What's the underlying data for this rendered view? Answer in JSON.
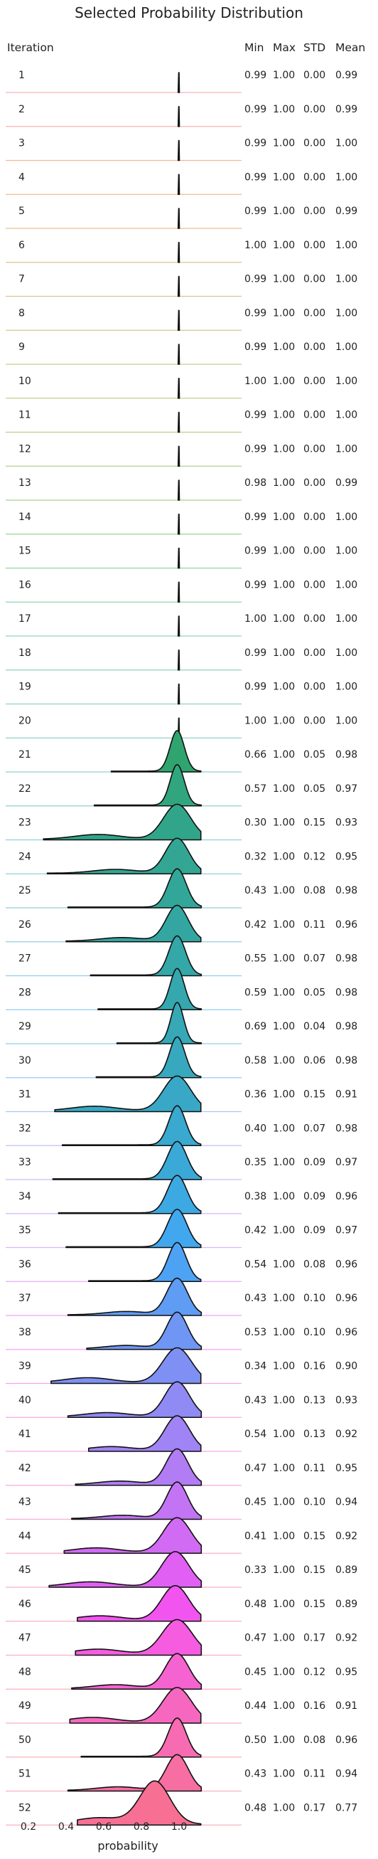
{
  "chart_data": {
    "type": "ridgeline",
    "title": "Selected Probability Distribution",
    "xlabel": "probability",
    "ylabel": "Iteration",
    "xlim": [
      0.2,
      1.2
    ],
    "xticks": [
      "0.2",
      "0.4",
      "0.6",
      "0.8",
      "1.0"
    ],
    "stat_headers": [
      "Min",
      "Max",
      "STD",
      "Mean"
    ],
    "rows": [
      {
        "iteration": "1",
        "min": "0.99",
        "max": "1.00",
        "std": "0.00",
        "mean": "0.99",
        "color": "#f77189"
      },
      {
        "iteration": "2",
        "min": "0.99",
        "max": "1.00",
        "std": "0.00",
        "mean": "0.99",
        "color": "#f7746a"
      },
      {
        "iteration": "3",
        "min": "0.99",
        "max": "1.00",
        "std": "0.00",
        "mean": "1.00",
        "color": "#f47a46"
      },
      {
        "iteration": "4",
        "min": "0.99",
        "max": "1.00",
        "std": "0.00",
        "mean": "1.00",
        "color": "#e28332"
      },
      {
        "iteration": "5",
        "min": "0.99",
        "max": "1.00",
        "std": "0.00",
        "mean": "0.99",
        "color": "#d48b32"
      },
      {
        "iteration": "6",
        "min": "1.00",
        "max": "1.00",
        "std": "0.00",
        "mean": "1.00",
        "color": "#c69232"
      },
      {
        "iteration": "7",
        "min": "0.99",
        "max": "1.00",
        "std": "0.00",
        "mean": "1.00",
        "color": "#b99732"
      },
      {
        "iteration": "8",
        "min": "0.99",
        "max": "1.00",
        "std": "0.00",
        "mean": "1.00",
        "color": "#ad9c32"
      },
      {
        "iteration": "9",
        "min": "0.99",
        "max": "1.00",
        "std": "0.00",
        "mean": "1.00",
        "color": "#a1a031"
      },
      {
        "iteration": "10",
        "min": "1.00",
        "max": "1.00",
        "std": "0.00",
        "mean": "1.00",
        "color": "#94a431"
      },
      {
        "iteration": "11",
        "min": "0.99",
        "max": "1.00",
        "std": "0.00",
        "mean": "1.00",
        "color": "#86a831"
      },
      {
        "iteration": "12",
        "min": "0.99",
        "max": "1.00",
        "std": "0.00",
        "mean": "1.00",
        "color": "#74ac31"
      },
      {
        "iteration": "13",
        "min": "0.98",
        "max": "1.00",
        "std": "0.00",
        "mean": "0.99",
        "color": "#5eb031"
      },
      {
        "iteration": "14",
        "min": "0.99",
        "max": "1.00",
        "std": "0.00",
        "mean": "1.00",
        "color": "#3db432"
      },
      {
        "iteration": "15",
        "min": "0.99",
        "max": "1.00",
        "std": "0.00",
        "mean": "1.00",
        "color": "#32b456"
      },
      {
        "iteration": "16",
        "min": "0.99",
        "max": "1.00",
        "std": "0.00",
        "mean": "1.00",
        "color": "#33b26c"
      },
      {
        "iteration": "17",
        "min": "1.00",
        "max": "1.00",
        "std": "0.00",
        "mean": "1.00",
        "color": "#34b07c"
      },
      {
        "iteration": "18",
        "min": "0.99",
        "max": "1.00",
        "std": "0.00",
        "mean": "1.00",
        "color": "#35ae88"
      },
      {
        "iteration": "19",
        "min": "0.99",
        "max": "1.00",
        "std": "0.00",
        "mean": "1.00",
        "color": "#35ad92"
      },
      {
        "iteration": "20",
        "min": "1.00",
        "max": "1.00",
        "std": "0.00",
        "mean": "1.00",
        "color": "#36ac9a"
      },
      {
        "iteration": "21",
        "min": "0.66",
        "max": "1.00",
        "std": "0.05",
        "mean": "0.98",
        "color": "#36aba2",
        "fill": "#2fa46e"
      },
      {
        "iteration": "22",
        "min": "0.57",
        "max": "1.00",
        "std": "0.05",
        "mean": "0.97",
        "color": "#37aaa9",
        "fill": "#31a57d"
      },
      {
        "iteration": "23",
        "min": "0.30",
        "max": "1.00",
        "std": "0.15",
        "mean": "0.93",
        "color": "#37a9b0",
        "fill": "#31a589"
      },
      {
        "iteration": "24",
        "min": "0.32",
        "max": "1.00",
        "std": "0.12",
        "mean": "0.95",
        "color": "#38a7b7",
        "fill": "#32a692"
      },
      {
        "iteration": "25",
        "min": "0.43",
        "max": "1.00",
        "std": "0.08",
        "mean": "0.98",
        "color": "#38a6be",
        "fill": "#33a69a"
      },
      {
        "iteration": "26",
        "min": "0.42",
        "max": "1.00",
        "std": "0.11",
        "mean": "0.96",
        "color": "#39a4c6",
        "fill": "#33a6a1"
      },
      {
        "iteration": "27",
        "min": "0.55",
        "max": "1.00",
        "std": "0.07",
        "mean": "0.98",
        "color": "#3aa3cf",
        "fill": "#34a7a8"
      },
      {
        "iteration": "28",
        "min": "0.59",
        "max": "1.00",
        "std": "0.05",
        "mean": "0.98",
        "color": "#3ba1d9",
        "fill": "#35a7af"
      },
      {
        "iteration": "29",
        "min": "0.69",
        "max": "1.00",
        "std": "0.04",
        "mean": "0.98",
        "color": "#3d9fe5",
        "fill": "#36a8b6"
      },
      {
        "iteration": "30",
        "min": "0.58",
        "max": "1.00",
        "std": "0.06",
        "mean": "0.98",
        "color": "#4a9bf4",
        "fill": "#37a8be"
      },
      {
        "iteration": "31",
        "min": "0.36",
        "max": "1.00",
        "std": "0.15",
        "mean": "0.91",
        "color": "#6b94f4",
        "fill": "#38a8c6"
      },
      {
        "iteration": "32",
        "min": "0.40",
        "max": "1.00",
        "std": "0.07",
        "mean": "0.98",
        "color": "#858df4",
        "fill": "#39a9cf"
      },
      {
        "iteration": "33",
        "min": "0.35",
        "max": "1.00",
        "std": "0.09",
        "mean": "0.97",
        "color": "#9a86f4",
        "fill": "#3aa9d8"
      },
      {
        "iteration": "34",
        "min": "0.38",
        "max": "1.00",
        "std": "0.09",
        "mean": "0.96",
        "color": "#ad7ef4",
        "fill": "#3ca9e3"
      },
      {
        "iteration": "35",
        "min": "0.42",
        "max": "1.00",
        "std": "0.09",
        "mean": "0.97",
        "color": "#bf75f4",
        "fill": "#41a8f0"
      },
      {
        "iteration": "36",
        "min": "0.54",
        "max": "1.00",
        "std": "0.08",
        "mean": "0.96",
        "color": "#d06af4",
        "fill": "#4ea2f4"
      },
      {
        "iteration": "37",
        "min": "0.43",
        "max": "1.00",
        "std": "0.10",
        "mean": "0.96",
        "color": "#e35df4",
        "fill": "#5f9cf4"
      },
      {
        "iteration": "38",
        "min": "0.53",
        "max": "1.00",
        "std": "0.10",
        "mean": "0.96",
        "color": "#f454ee",
        "fill": "#6f96f4"
      },
      {
        "iteration": "39",
        "min": "0.34",
        "max": "1.00",
        "std": "0.16",
        "mean": "0.90",
        "color": "#f55adf",
        "fill": "#7f90f4"
      },
      {
        "iteration": "40",
        "min": "0.43",
        "max": "1.00",
        "std": "0.13",
        "mean": "0.93",
        "color": "#f55fd2",
        "fill": "#8f8af4"
      },
      {
        "iteration": "41",
        "min": "0.54",
        "max": "1.00",
        "std": "0.13",
        "mean": "0.92",
        "color": "#f663c6",
        "fill": "#a083f4"
      },
      {
        "iteration": "42",
        "min": "0.47",
        "max": "1.00",
        "std": "0.11",
        "mean": "0.95",
        "color": "#f666ba",
        "fill": "#b17cf4"
      },
      {
        "iteration": "43",
        "min": "0.45",
        "max": "1.00",
        "std": "0.10",
        "mean": "0.94",
        "color": "#f669af",
        "fill": "#c274f4"
      },
      {
        "iteration": "44",
        "min": "0.41",
        "max": "1.00",
        "std": "0.15",
        "mean": "0.92",
        "color": "#f66ca4",
        "fill": "#d26bf4"
      },
      {
        "iteration": "45",
        "min": "0.33",
        "max": "1.00",
        "std": "0.15",
        "mean": "0.89",
        "color": "#f66e99",
        "fill": "#e060f4"
      },
      {
        "iteration": "46",
        "min": "0.48",
        "max": "1.00",
        "std": "0.15",
        "mean": "0.89",
        "color": "#f7708e",
        "fill": "#f254f0"
      },
      {
        "iteration": "47",
        "min": "0.47",
        "max": "1.00",
        "std": "0.17",
        "mean": "0.92",
        "color": "#f77189",
        "fill": "#f55ce0"
      },
      {
        "iteration": "48",
        "min": "0.45",
        "max": "1.00",
        "std": "0.12",
        "mean": "0.95",
        "color": "#f77189",
        "fill": "#f563d0"
      },
      {
        "iteration": "49",
        "min": "0.44",
        "max": "1.00",
        "std": "0.16",
        "mean": "0.91",
        "color": "#f77189",
        "fill": "#f668c0"
      },
      {
        "iteration": "50",
        "min": "0.50",
        "max": "1.00",
        "std": "0.08",
        "mean": "0.96",
        "color": "#f77189",
        "fill": "#f66bb1"
      },
      {
        "iteration": "51",
        "min": "0.43",
        "max": "1.00",
        "std": "0.11",
        "mean": "0.94",
        "color": "#f77189",
        "fill": "#f66ea2"
      },
      {
        "iteration": "52",
        "min": "0.48",
        "max": "1.00",
        "std": "0.17",
        "mean": "0.77",
        "color": "#f77189",
        "fill": "#f77093"
      }
    ]
  }
}
